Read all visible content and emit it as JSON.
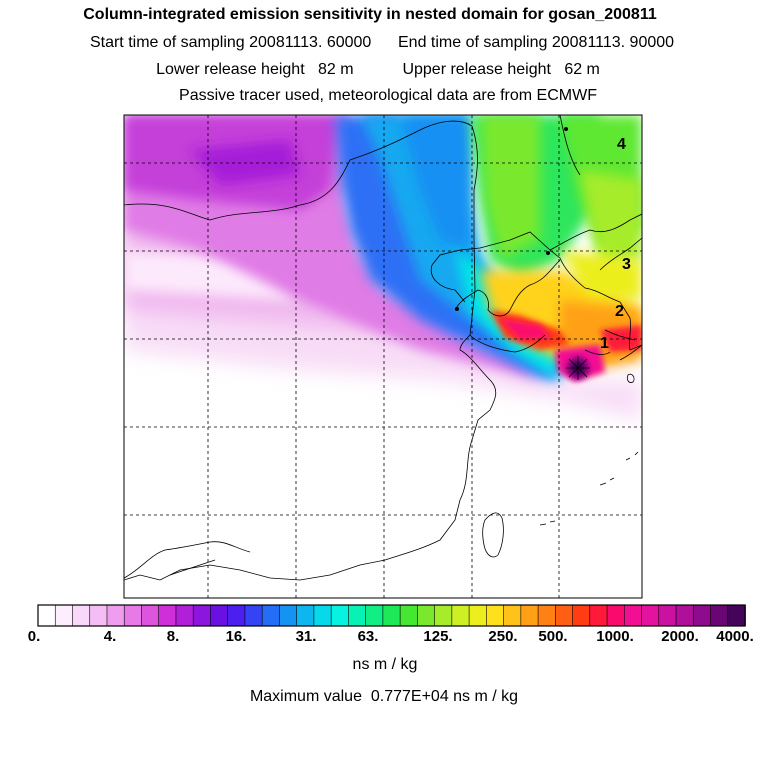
{
  "header": {
    "title": "Column-integrated emission sensitivity in nested domain for gosan_200811",
    "line1": "Start time of sampling 20081113. 60000      End time of sampling 20081113. 90000",
    "line2": "Lower release height   82 m           Upper release height   62 m",
    "line3": "Passive tracer used, meteorological data are from ECMWF"
  },
  "map": {
    "markers": [
      "1",
      "2",
      "3",
      "4"
    ]
  },
  "colorbar": {
    "ticks": [
      "0.",
      "4.",
      "8.",
      "16.",
      "31.",
      "63.",
      "125.",
      "250.",
      "500.",
      "1000.",
      "2000.",
      "4000."
    ],
    "colors": [
      "#ffffff",
      "#fdeefd",
      "#f9d8f9",
      "#f4bdf4",
      "#ef9def",
      "#e67ae6",
      "#dc55dc",
      "#cf2fd8",
      "#b21fd9",
      "#8d16de",
      "#6a10e2",
      "#4a1ff0",
      "#3444f5",
      "#246ef6",
      "#1593f3",
      "#0db6ee",
      "#08d9ea",
      "#05f3e0",
      "#07f2b4",
      "#10ee84",
      "#1ee858",
      "#45e733",
      "#7ae92e",
      "#a6ec2a",
      "#cdef24",
      "#ecee1e",
      "#ffe01c",
      "#ffc21a",
      "#ffa017",
      "#ff8014",
      "#ff5f12",
      "#ff3c14",
      "#ff1a3a",
      "#fb0a6e",
      "#f20f94",
      "#e3139f",
      "#cb11a0",
      "#af0f99",
      "#8f0b8d",
      "#6a0673",
      "#46035a"
    ],
    "units": "ns m / kg"
  },
  "footer": {
    "max_value": "Maximum value  0.777E+04 ns m / kg"
  }
}
